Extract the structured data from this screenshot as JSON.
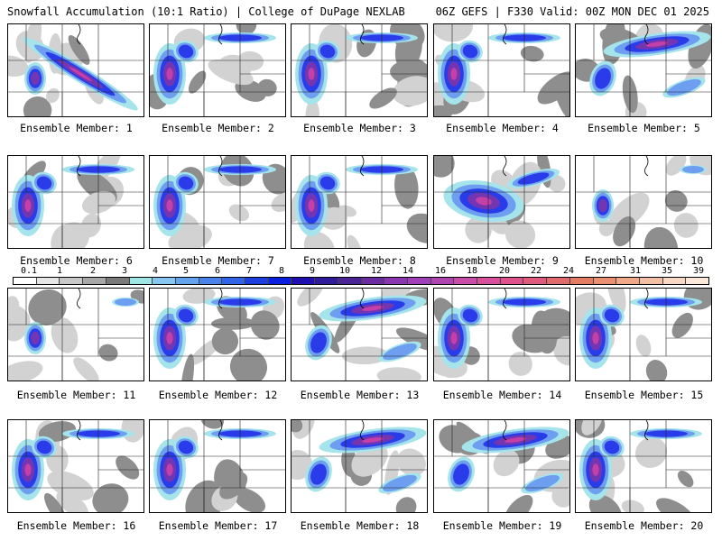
{
  "header": {
    "left": "Snowfall Accumulation (10:1 Ratio) | College of DuPage NEXLAB",
    "right": "06Z GEFS | F330 Valid: 00Z MON DEC 01 2025"
  },
  "legend": {
    "labels": [
      "0.1",
      "1",
      "2",
      "3",
      "4",
      "5",
      "6",
      "7",
      "8",
      "9",
      "10",
      "12",
      "14",
      "16",
      "18",
      "20",
      "22",
      "24",
      "27",
      "31",
      "35",
      "39"
    ],
    "colors": [
      "#ffffff",
      "#e6e6e6",
      "#c8c8c8",
      "#a8a8a8",
      "#7a7a7a",
      "#9ee6e6",
      "#86c6f0",
      "#64a4ee",
      "#4a82ec",
      "#3264e8",
      "#1e3ee0",
      "#0a1ee0",
      "#2010b0",
      "#301c9a",
      "#4a2496",
      "#6a2ca0",
      "#8a36b0",
      "#a040b8",
      "#b044b0",
      "#c84ca8",
      "#d8509c",
      "#e0508c",
      "#e05a7c",
      "#e06a6c",
      "#e47c64",
      "#e89070",
      "#f0a888",
      "#f4c0a4",
      "#f8d8c4",
      "#fce8d8"
    ]
  },
  "panel_caption": "Ensemble Member:",
  "members": [
    "1",
    "2",
    "3",
    "4",
    "5",
    "6",
    "7",
    "8",
    "9",
    "10",
    "11",
    "12",
    "13",
    "14",
    "15",
    "16",
    "17",
    "18",
    "19",
    "20"
  ],
  "palette": {
    "gray_light": "#d2d2d2",
    "gray_dark": "#8e8e8e",
    "cyan": "#a4e4ea",
    "blue_light": "#6e9ef0",
    "blue": "#2a3cea",
    "purple": "#7436b0",
    "magenta": "#c43fa8",
    "pink": "#e05a8a",
    "border_line": "#222222"
  }
}
